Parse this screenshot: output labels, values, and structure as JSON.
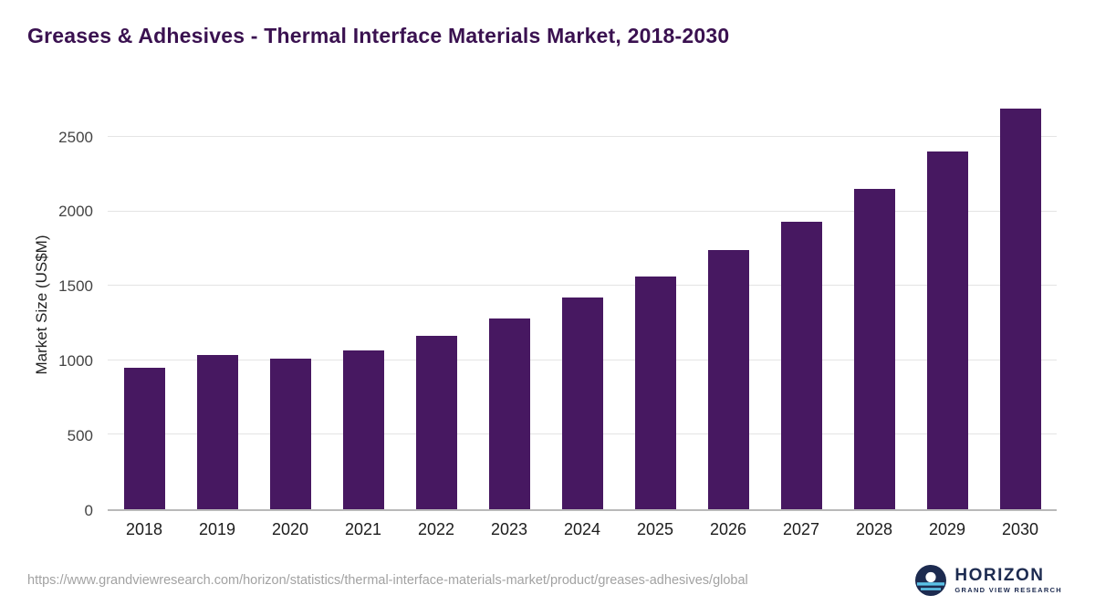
{
  "title": "Greases & Adhesives - Thermal Interface Materials Market, 2018-2030",
  "chart_data": {
    "type": "bar",
    "title": "Greases & Adhesives - Thermal Interface Materials Market, 2018-2030",
    "categories": [
      "2018",
      "2019",
      "2020",
      "2021",
      "2022",
      "2023",
      "2024",
      "2025",
      "2026",
      "2027",
      "2028",
      "2029",
      "2030"
    ],
    "values": [
      950,
      1035,
      1010,
      1065,
      1165,
      1280,
      1420,
      1565,
      1740,
      1935,
      2155,
      2405,
      2690
    ],
    "xlabel": "",
    "ylabel": "Market Size (US$M)",
    "yticks": [
      0,
      500,
      1000,
      1500,
      2000,
      2500
    ],
    "ymax": 2760,
    "bar_color": "#471861",
    "grid": true,
    "legend_position": "none"
  },
  "footer": {
    "source_url": "https://www.grandviewresearch.com/horizon/statistics/thermal-interface-materials-market/product/greases-adhesives/global",
    "logo_title": "HORIZON",
    "logo_subtitle": "GRAND VIEW RESEARCH"
  },
  "colors": {
    "title": "#3a1150",
    "bar": "#471861",
    "gridline": "#e4e4e4",
    "axis_text": "#444444",
    "url_text": "#a2a2a2",
    "logo_navy": "#1d2b50",
    "logo_blue": "#5bc2e7"
  }
}
